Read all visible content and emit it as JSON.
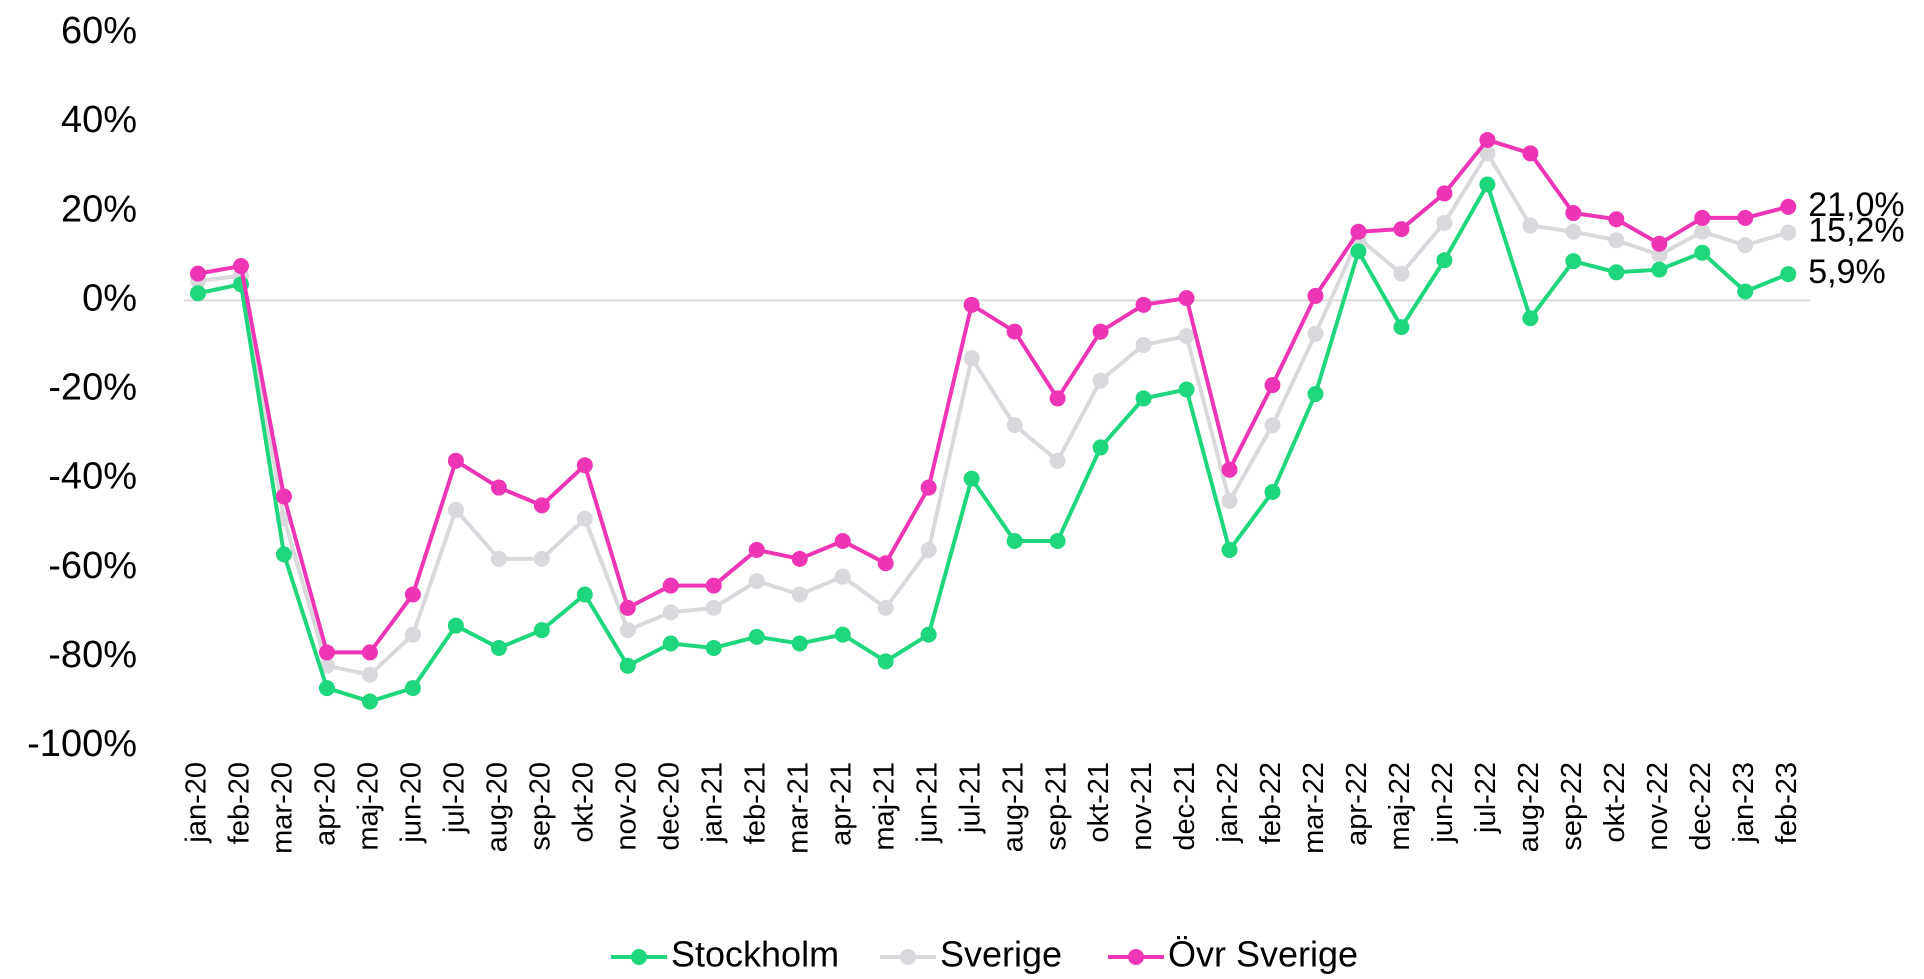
{
  "chart_data": {
    "type": "line",
    "categories": [
      "jan-20",
      "feb-20",
      "mar-20",
      "apr-20",
      "maj-20",
      "jun-20",
      "jul-20",
      "aug-20",
      "sep-20",
      "okt-20",
      "nov-20",
      "dec-20",
      "jan-21",
      "feb-21",
      "mar-21",
      "apr-21",
      "maj-21",
      "jun-21",
      "jul-21",
      "aug-21",
      "sep-21",
      "okt-21",
      "nov-21",
      "dec-21",
      "jan-22",
      "feb-22",
      "mar-22",
      "apr-22",
      "maj-22",
      "jun-22",
      "jul-22",
      "aug-22",
      "sep-22",
      "okt-22",
      "nov-22",
      "dec-22",
      "jan-23",
      "feb-23"
    ],
    "series": [
      {
        "name": "Sverige",
        "color": "#d9d9dd",
        "values": [
          4.4,
          5.5,
          -49,
          -82,
          -84,
          -75,
          -47,
          -58,
          -58,
          -49,
          -74,
          -70,
          -69,
          -63,
          -66,
          -62,
          -69,
          -56,
          -13,
          -28,
          -36,
          -18,
          -10,
          -8,
          -45,
          -28,
          -7.5,
          14,
          6,
          17.4,
          33,
          16.8,
          15.4,
          13.5,
          10.2,
          15.4,
          12.4,
          15.2
        ],
        "value_labels": [
          null,
          null,
          null,
          null,
          null,
          null,
          null,
          null,
          null,
          null,
          null,
          null,
          null,
          null,
          null,
          null,
          null,
          null,
          null,
          null,
          null,
          null,
          null,
          null,
          null,
          null,
          null,
          null,
          null,
          null,
          null,
          null,
          null,
          null,
          null,
          null,
          null,
          "15,2%"
        ]
      },
      {
        "name": "Stockholm",
        "color": "#1ed67c",
        "values": [
          1.6,
          3.6,
          -57,
          -87,
          -90,
          -87,
          -73,
          -78,
          -74,
          -66,
          -82,
          -77,
          -78,
          -75.5,
          -77,
          -75,
          -81,
          -75,
          -40,
          -54,
          -54,
          -33,
          -22,
          -20,
          -56,
          -43,
          -21,
          11,
          -6,
          9,
          26,
          -4,
          8.8,
          6.3,
          6.9,
          10.7,
          2,
          5.9
        ],
        "value_labels": [
          null,
          null,
          null,
          null,
          null,
          null,
          null,
          null,
          null,
          null,
          null,
          null,
          null,
          null,
          null,
          null,
          null,
          null,
          null,
          null,
          null,
          null,
          null,
          null,
          null,
          null,
          null,
          null,
          null,
          null,
          null,
          null,
          null,
          null,
          null,
          null,
          null,
          "5,9%"
        ]
      },
      {
        "name": "Övr Sverige",
        "color": "#ee35b5",
        "values": [
          6,
          7.7,
          -44,
          -79,
          -79,
          -66,
          -36,
          -42,
          -46,
          -37,
          -69,
          -64,
          -64,
          -56,
          -58,
          -54,
          -59,
          -42,
          -1,
          -7,
          -22,
          -7,
          -1,
          0.5,
          -38,
          -19,
          1,
          15.4,
          16,
          24,
          36,
          33,
          19.6,
          18.2,
          12.7,
          18.5,
          18.5,
          21
        ],
        "value_labels": [
          null,
          null,
          null,
          null,
          null,
          null,
          null,
          null,
          null,
          null,
          null,
          null,
          null,
          null,
          null,
          null,
          null,
          null,
          null,
          null,
          null,
          null,
          null,
          null,
          null,
          null,
          null,
          null,
          null,
          null,
          null,
          null,
          null,
          null,
          null,
          null,
          null,
          "21,0%"
        ]
      }
    ],
    "legend_order": [
      "Stockholm",
      "Sverige",
      "Övr Sverige"
    ],
    "ylim": [
      -100,
      60
    ],
    "yticks": [
      {
        "value": -100,
        "label": "-100%"
      },
      {
        "value": -80,
        "label": "-80%"
      },
      {
        "value": -60,
        "label": "-60%"
      },
      {
        "value": -40,
        "label": "-40%"
      },
      {
        "value": -20,
        "label": "-20%"
      },
      {
        "value": 0,
        "label": "0%"
      },
      {
        "value": 20,
        "label": "20%"
      },
      {
        "value": 40,
        "label": "40%"
      },
      {
        "value": 60,
        "label": "60%"
      }
    ],
    "legend": "bottom",
    "grid": false
  }
}
